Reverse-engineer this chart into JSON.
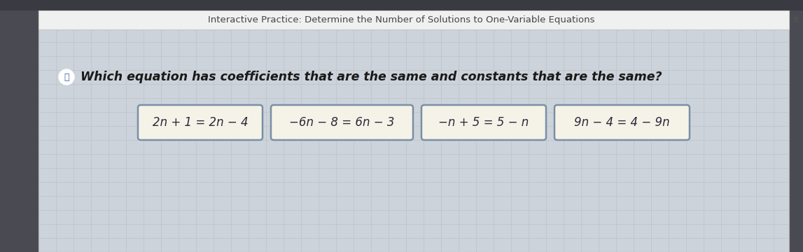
{
  "title": "Interactive Practice: Determine the Number of Solutions to One-Variable Equations",
  "title_color": "#444444",
  "title_fontsize": 9.5,
  "close_btn": "x",
  "question": "Which equation has coefficients that are the same and constants that are the same?",
  "question_fontsize": 12.5,
  "equations": [
    "2n + 1 = 2n − 4",
    "−6n − 8 = 6n − 3",
    "−n + 5 = 5 − n",
    "9n − 4 = 4 − 9n"
  ],
  "eq_fontsize": 12,
  "outer_bg": "#4a4a52",
  "titlebar_bg": "#f0f0f0",
  "titlebar_border": "#cccccc",
  "panel_bg": "#cdd3da",
  "grid_color": "#b8bec6",
  "box_bg": "#f5f3e8",
  "box_border": "#7a8fa6",
  "text_color": "#2a2a3a",
  "question_color": "#1a1a1a",
  "icon_color": "#3a5fa0",
  "figwidth": 11.47,
  "figheight": 3.6,
  "dpi": 100
}
